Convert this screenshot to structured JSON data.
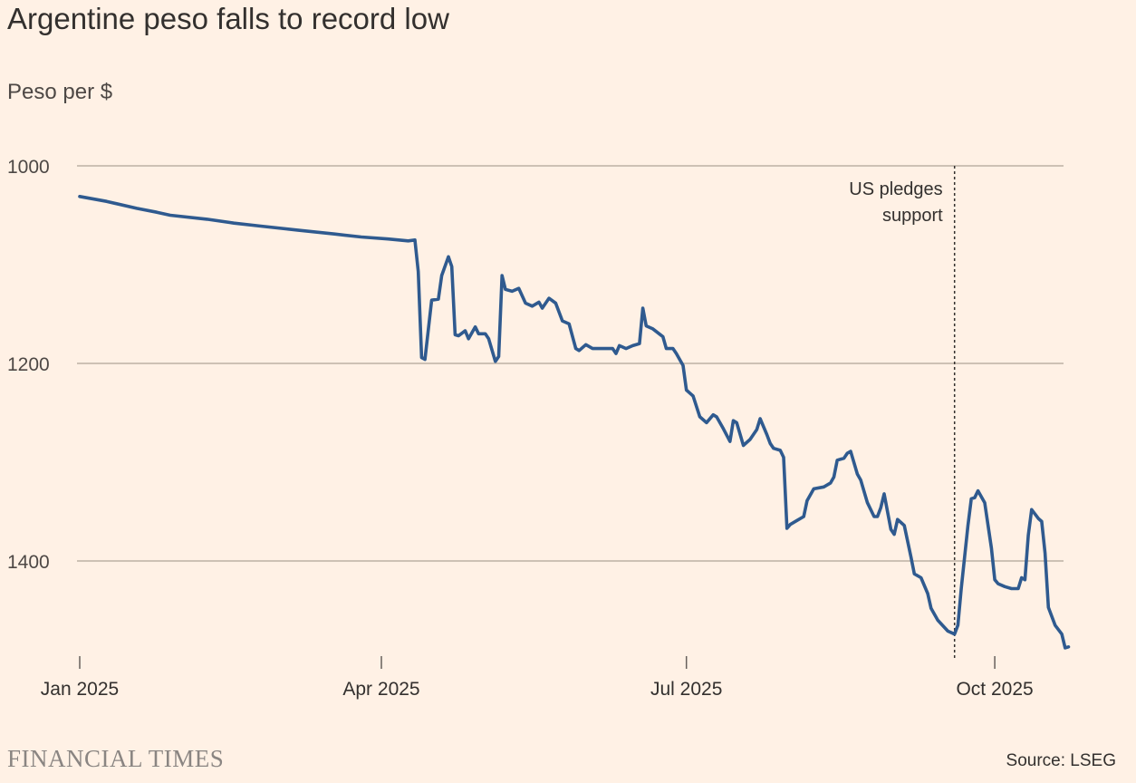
{
  "chart_data": {
    "type": "line",
    "title": "Argentine peso falls to record low",
    "ylabel": "Peso per $",
    "ylim": [
      1000,
      1500
    ],
    "y_inverted": true,
    "y_ticks": [
      1000,
      1200,
      1400
    ],
    "x_ticks": [
      {
        "date": "2025-01-01",
        "label": "Jan 2025"
      },
      {
        "date": "2025-04-01",
        "label": "Apr 2025"
      },
      {
        "date": "2025-07-01",
        "label": "Jul 2025"
      },
      {
        "date": "2025-10-01",
        "label": "Oct 2025"
      }
    ],
    "grid": true,
    "line_color": "#2f5a8f",
    "annotation": {
      "date": "2025-09-19",
      "lines": [
        "US pledges",
        "support"
      ]
    },
    "series": [
      {
        "points": [
          [
            "2025-01-01",
            1031
          ],
          [
            "2025-01-09",
            1036
          ],
          [
            "2025-01-18",
            1043
          ],
          [
            "2025-01-24",
            1047
          ],
          [
            "2025-01-28",
            1050
          ],
          [
            "2025-02-08",
            1054
          ],
          [
            "2025-02-16",
            1058
          ],
          [
            "2025-02-24",
            1061
          ],
          [
            "2025-03-07",
            1065
          ],
          [
            "2025-03-18",
            1069
          ],
          [
            "2025-03-26",
            1072
          ],
          [
            "2025-04-03",
            1074
          ],
          [
            "2025-04-09",
            1076
          ],
          [
            "2025-04-11",
            1075
          ],
          [
            "2025-04-12",
            1107
          ],
          [
            "2025-04-13",
            1194
          ],
          [
            "2025-04-14",
            1196
          ],
          [
            "2025-04-16",
            1136
          ],
          [
            "2025-04-18",
            1135
          ],
          [
            "2025-04-19",
            1111
          ],
          [
            "2025-04-21",
            1092
          ],
          [
            "2025-04-22",
            1102
          ],
          [
            "2025-04-23",
            1171
          ],
          [
            "2025-04-24",
            1172
          ],
          [
            "2025-04-26",
            1167
          ],
          [
            "2025-04-27",
            1175
          ],
          [
            "2025-04-29",
            1163
          ],
          [
            "2025-04-30",
            1170
          ],
          [
            "2025-05-02",
            1170
          ],
          [
            "2025-05-03",
            1175
          ],
          [
            "2025-05-05",
            1198
          ],
          [
            "2025-05-06",
            1193
          ],
          [
            "2025-05-07",
            1111
          ],
          [
            "2025-05-08",
            1125
          ],
          [
            "2025-05-10",
            1127
          ],
          [
            "2025-05-12",
            1124
          ],
          [
            "2025-05-14",
            1139
          ],
          [
            "2025-05-16",
            1142
          ],
          [
            "2025-05-18",
            1138
          ],
          [
            "2025-05-19",
            1144
          ],
          [
            "2025-05-21",
            1134
          ],
          [
            "2025-05-23",
            1139
          ],
          [
            "2025-05-25",
            1157
          ],
          [
            "2025-05-27",
            1160
          ],
          [
            "2025-05-29",
            1185
          ],
          [
            "2025-05-30",
            1187
          ],
          [
            "2025-06-01",
            1181
          ],
          [
            "2025-06-03",
            1185
          ],
          [
            "2025-06-06",
            1185
          ],
          [
            "2025-06-09",
            1185
          ],
          [
            "2025-06-10",
            1190
          ],
          [
            "2025-06-11",
            1182
          ],
          [
            "2025-06-13",
            1185
          ],
          [
            "2025-06-15",
            1182
          ],
          [
            "2025-06-17",
            1180
          ],
          [
            "2025-06-18",
            1144
          ],
          [
            "2025-06-19",
            1162
          ],
          [
            "2025-06-21",
            1165
          ],
          [
            "2025-06-24",
            1173
          ],
          [
            "2025-06-25",
            1185
          ],
          [
            "2025-06-27",
            1185
          ],
          [
            "2025-06-28",
            1190
          ],
          [
            "2025-06-30",
            1202
          ],
          [
            "2025-07-01",
            1227
          ],
          [
            "2025-07-03",
            1233
          ],
          [
            "2025-07-05",
            1254
          ],
          [
            "2025-07-07",
            1260
          ],
          [
            "2025-07-09",
            1252
          ],
          [
            "2025-07-10",
            1254
          ],
          [
            "2025-07-12",
            1266
          ],
          [
            "2025-07-14",
            1279
          ],
          [
            "2025-07-15",
            1258
          ],
          [
            "2025-07-16",
            1260
          ],
          [
            "2025-07-18",
            1283
          ],
          [
            "2025-07-20",
            1277
          ],
          [
            "2025-07-22",
            1267
          ],
          [
            "2025-07-23",
            1256
          ],
          [
            "2025-07-25",
            1272
          ],
          [
            "2025-07-26",
            1281
          ],
          [
            "2025-07-27",
            1286
          ],
          [
            "2025-07-29",
            1288
          ],
          [
            "2025-07-30",
            1295
          ],
          [
            "2025-07-31",
            1367
          ],
          [
            "2025-08-01",
            1363
          ],
          [
            "2025-08-03",
            1359
          ],
          [
            "2025-08-05",
            1355
          ],
          [
            "2025-08-06",
            1339
          ],
          [
            "2025-08-08",
            1327
          ],
          [
            "2025-08-11",
            1325
          ],
          [
            "2025-08-13",
            1321
          ],
          [
            "2025-08-14",
            1315
          ],
          [
            "2025-08-15",
            1298
          ],
          [
            "2025-08-17",
            1296
          ],
          [
            "2025-08-18",
            1291
          ],
          [
            "2025-08-19",
            1289
          ],
          [
            "2025-08-21",
            1312
          ],
          [
            "2025-08-22",
            1318
          ],
          [
            "2025-08-24",
            1341
          ],
          [
            "2025-08-26",
            1355
          ],
          [
            "2025-08-27",
            1355
          ],
          [
            "2025-08-28",
            1346
          ],
          [
            "2025-08-29",
            1332
          ],
          [
            "2025-08-30",
            1350
          ],
          [
            "2025-08-31",
            1368
          ],
          [
            "2025-09-01",
            1373
          ],
          [
            "2025-09-02",
            1358
          ],
          [
            "2025-09-03",
            1361
          ],
          [
            "2025-09-04",
            1364
          ],
          [
            "2025-09-06",
            1396
          ],
          [
            "2025-09-07",
            1413
          ],
          [
            "2025-09-09",
            1417
          ],
          [
            "2025-09-11",
            1433
          ],
          [
            "2025-09-12",
            1448
          ],
          [
            "2025-09-14",
            1460
          ],
          [
            "2025-09-17",
            1471
          ],
          [
            "2025-09-19",
            1474
          ],
          [
            "2025-09-20",
            1465
          ],
          [
            "2025-09-21",
            1428
          ],
          [
            "2025-09-23",
            1364
          ],
          [
            "2025-09-24",
            1337
          ],
          [
            "2025-09-25",
            1336
          ],
          [
            "2025-09-26",
            1329
          ],
          [
            "2025-09-28",
            1341
          ],
          [
            "2025-09-29",
            1364
          ],
          [
            "2025-09-30",
            1387
          ],
          [
            "2025-10-01",
            1419
          ],
          [
            "2025-10-02",
            1423
          ],
          [
            "2025-10-04",
            1426
          ],
          [
            "2025-10-06",
            1428
          ],
          [
            "2025-10-08",
            1428
          ],
          [
            "2025-10-09",
            1417
          ],
          [
            "2025-10-10",
            1419
          ],
          [
            "2025-10-11",
            1374
          ],
          [
            "2025-10-12",
            1348
          ],
          [
            "2025-10-14",
            1357
          ],
          [
            "2025-10-15",
            1360
          ],
          [
            "2025-10-16",
            1392
          ],
          [
            "2025-10-17",
            1447
          ],
          [
            "2025-10-19",
            1465
          ],
          [
            "2025-10-21",
            1474
          ],
          [
            "2025-10-22",
            1488
          ],
          [
            "2025-10-23",
            1487
          ]
        ]
      }
    ]
  },
  "footer": {
    "logo": "FINANCIAL TIMES",
    "source": "Source: LSEG"
  }
}
